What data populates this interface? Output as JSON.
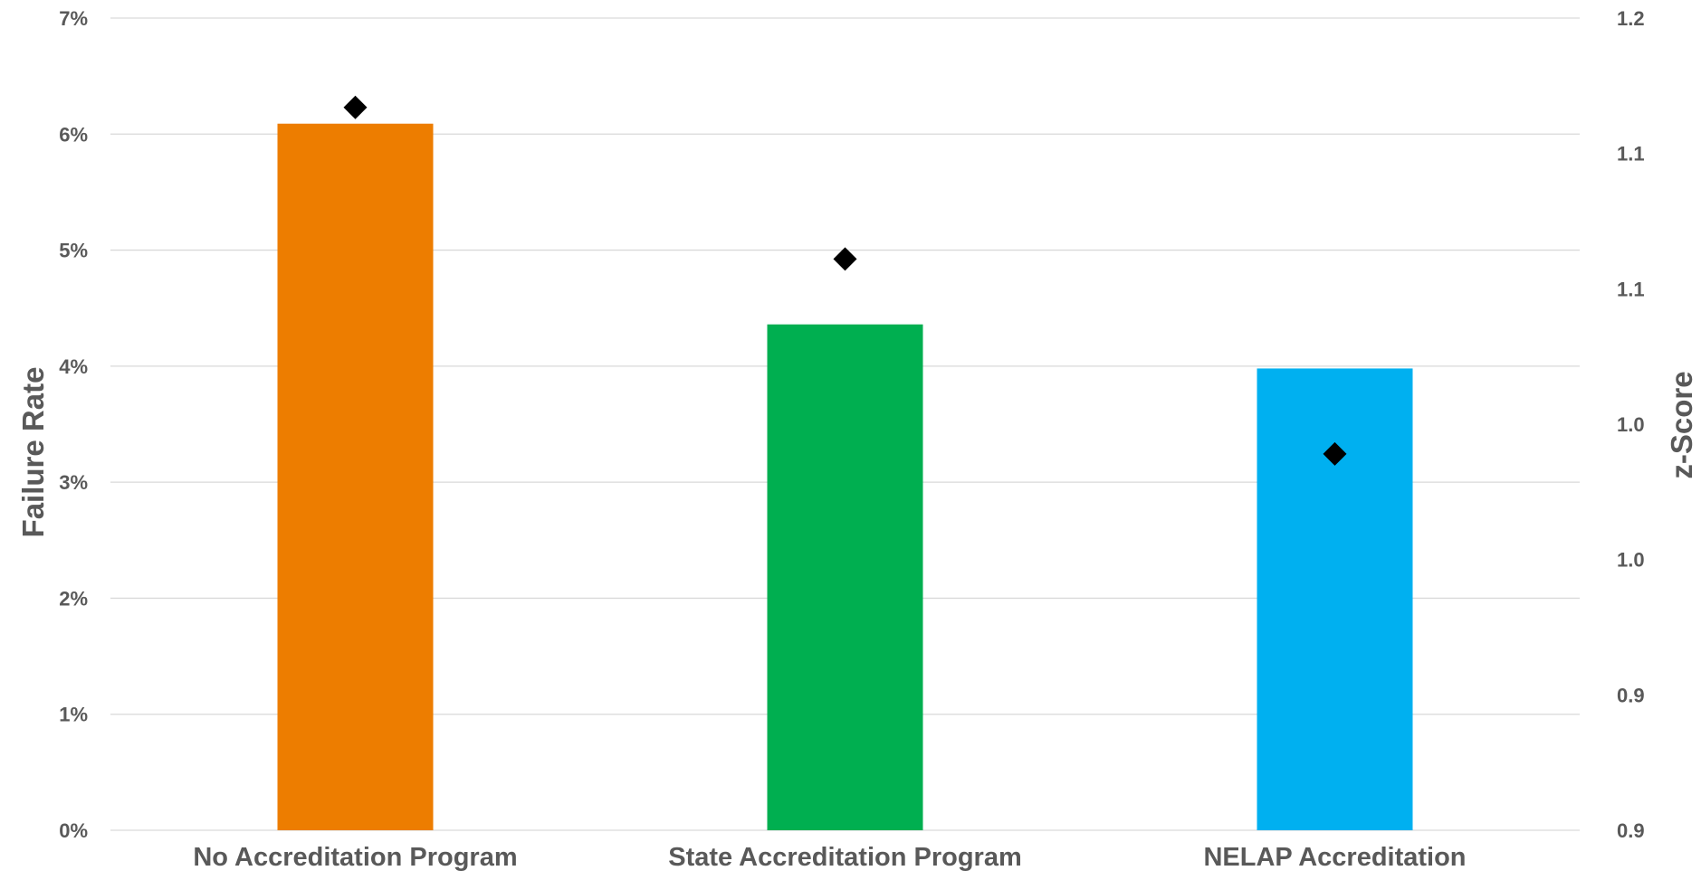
{
  "chart_data": {
    "type": "bar",
    "categories": [
      "No Accreditation Program",
      "State Accreditation Program",
      "NELAP Accreditation"
    ],
    "series": [
      {
        "name": "",
        "axis": "left",
        "type": "bar",
        "values": [
          0.0609,
          0.0436,
          0.0398
        ],
        "colors": [
          "#ED7D00",
          "#00AF50",
          "#00B0F0"
        ]
      },
      {
        "name": "",
        "axis": "right",
        "type": "scatter",
        "marker": "diamond",
        "values": [
          1.117,
          1.061,
          0.989
        ],
        "color": "#000000"
      }
    ],
    "ylabel": "Failure Rate",
    "y2label": "z-Score",
    "ylim": [
      0,
      0.07
    ],
    "y2lim": [
      0.85,
      1.15
    ],
    "yticks": [
      0,
      0.01,
      0.02,
      0.03,
      0.04,
      0.05,
      0.06,
      0.07
    ],
    "ytick_labels": [
      "0%",
      "1%",
      "2%",
      "3%",
      "4%",
      "5%",
      "6%",
      "7%"
    ],
    "y2tick_labels": [
      "0.9",
      "0.9",
      "1.0",
      "1.0",
      "1.1",
      "1.1",
      "1.2"
    ],
    "grid": true,
    "legend": "none"
  }
}
